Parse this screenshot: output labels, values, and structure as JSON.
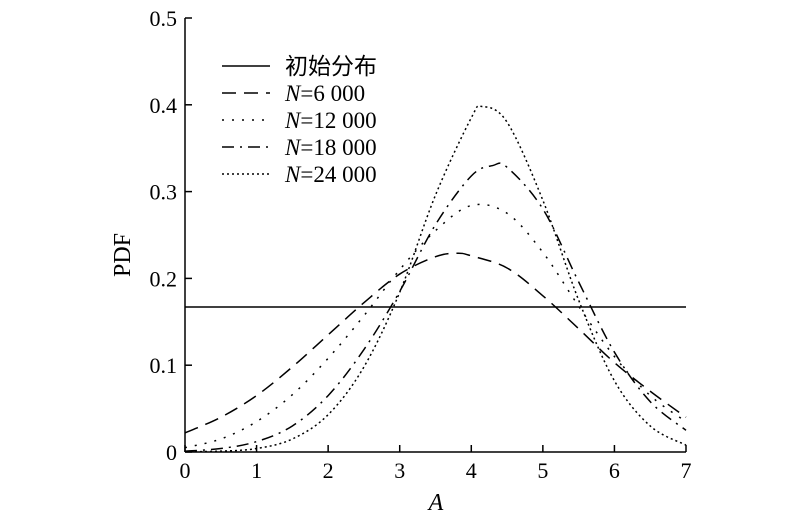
{
  "chart_data": {
    "type": "line",
    "title": "",
    "xlabel": "A",
    "ylabel": "PDF",
    "xlim": [
      0,
      7
    ],
    "ylim": [
      0,
      0.5
    ],
    "xticks": [
      "0",
      "1",
      "2",
      "3",
      "4",
      "5",
      "6",
      "7"
    ],
    "yticks": [
      "0",
      "0.1",
      "0.2",
      "0.3",
      "0.4",
      "0.5"
    ],
    "grid": false,
    "legend_position": "top-left",
    "series": [
      {
        "name": "初始分布",
        "legend_prefix": "",
        "legend_main": "初始分布",
        "dash": "solid",
        "x": [
          0,
          7
        ],
        "y": [
          0.167,
          0.167
        ]
      },
      {
        "name": "N=6 000",
        "legend_prefix": "N",
        "legend_main": "=6 000",
        "dash": "dashed",
        "x": [
          0,
          0.5,
          1,
          1.5,
          2,
          2.5,
          3,
          3.5,
          3.8,
          4,
          4.5,
          5,
          5.5,
          6,
          6.5,
          7
        ],
        "y": [
          0.022,
          0.04,
          0.065,
          0.098,
          0.135,
          0.172,
          0.205,
          0.225,
          0.229,
          0.226,
          0.212,
          0.18,
          0.142,
          0.103,
          0.07,
          0.04
        ]
      },
      {
        "name": "N=12 000",
        "legend_prefix": "N",
        "legend_main": "=12 000",
        "dash": "dotted-spaced",
        "x": [
          0,
          0.5,
          1,
          1.5,
          2,
          2.5,
          3,
          3.5,
          4,
          4.5,
          5,
          5.5,
          6,
          6.5,
          7
        ],
        "y": [
          0.005,
          0.015,
          0.035,
          0.066,
          0.108,
          0.157,
          0.21,
          0.255,
          0.284,
          0.275,
          0.23,
          0.168,
          0.11,
          0.065,
          0.035
        ]
      },
      {
        "name": "N=18 000",
        "legend_prefix": "N",
        "legend_main": "=18 000",
        "dash": "dashdot",
        "x": [
          0,
          0.5,
          1,
          1.5,
          2,
          2.5,
          3,
          3.5,
          4,
          4.3,
          4.5,
          5,
          5.5,
          6,
          6.5,
          7
        ],
        "y": [
          0.001,
          0.004,
          0.012,
          0.03,
          0.065,
          0.118,
          0.185,
          0.262,
          0.318,
          0.33,
          0.328,
          0.28,
          0.196,
          0.115,
          0.058,
          0.025
        ]
      },
      {
        "name": "N=24 000",
        "legend_prefix": "N",
        "legend_main": "=24 000",
        "dash": "dotted",
        "x": [
          0,
          0.5,
          1,
          1.5,
          2,
          2.5,
          3,
          3.5,
          4,
          4.15,
          4.5,
          5,
          5.5,
          6,
          6.5,
          7
        ],
        "y": [
          0.0003,
          0.001,
          0.004,
          0.015,
          0.043,
          0.098,
          0.184,
          0.296,
          0.385,
          0.398,
          0.38,
          0.29,
          0.175,
          0.082,
          0.03,
          0.008
        ]
      }
    ]
  }
}
